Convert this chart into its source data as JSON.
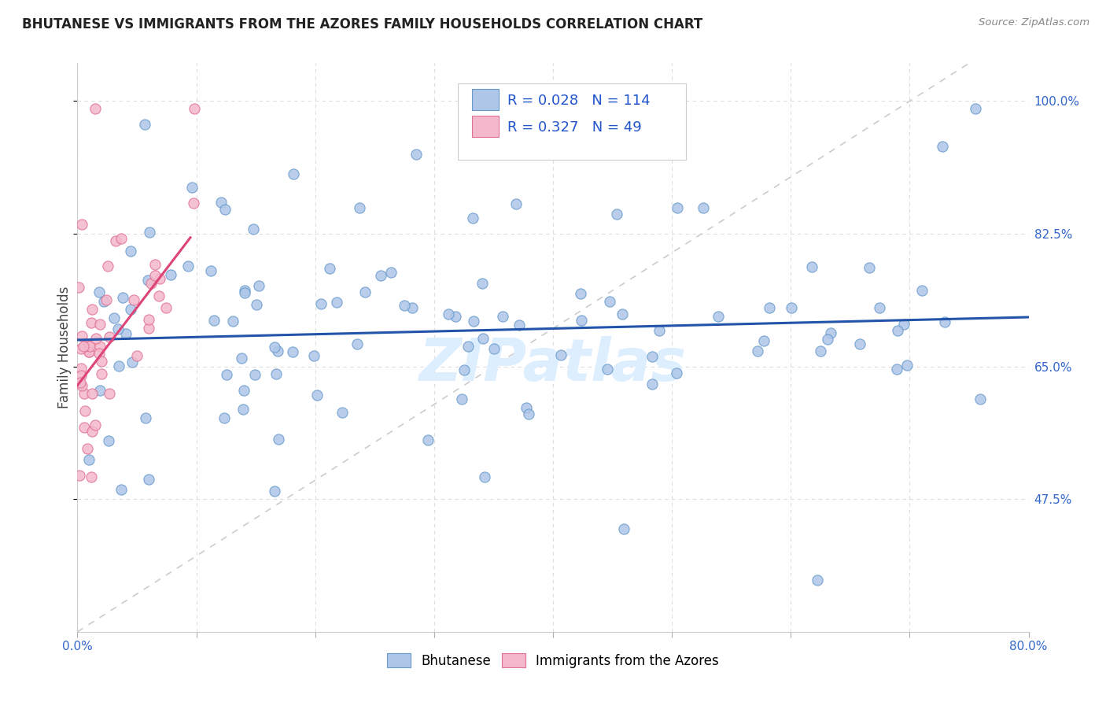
{
  "title": "BHUTANESE VS IMMIGRANTS FROM THE AZORES FAMILY HOUSEHOLDS CORRELATION CHART",
  "source": "Source: ZipAtlas.com",
  "ylabel": "Family Households",
  "ytick_labels": [
    "100.0%",
    "82.5%",
    "65.0%",
    "47.5%"
  ],
  "ytick_values": [
    1.0,
    0.825,
    0.65,
    0.475
  ],
  "xlim": [
    0.0,
    0.8
  ],
  "ylim": [
    0.3,
    1.05
  ],
  "blue_R": "0.028",
  "blue_N": "114",
  "pink_R": "0.327",
  "pink_N": "49",
  "blue_color": "#aec6e8",
  "blue_edge": "#6699cc",
  "pink_color": "#f4b8cc",
  "pink_edge": "#e07090",
  "blue_line_color": "#2255aa",
  "pink_line_color": "#dd4477",
  "diagonal_color": "#cccccc",
  "watermark_color": "#ddeeff",
  "background_color": "#ffffff",
  "grid_color": "#dddddd"
}
